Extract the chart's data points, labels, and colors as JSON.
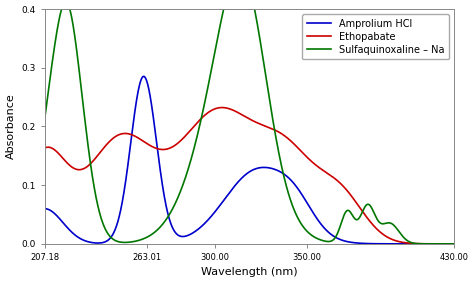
{
  "title": "",
  "xlabel": "Wavelength (nm)",
  "ylabel": "Absorbance",
  "xlim": [
    207,
    430
  ],
  "ylim": [
    0.0,
    0.4
  ],
  "yticks": [
    0.0,
    0.1,
    0.2,
    0.3,
    0.4
  ],
  "xticks": [
    207.18,
    263.01,
    300.0,
    350.0,
    430.0
  ],
  "xtick_labels": [
    "207.18",
    "263.01",
    "300.00",
    "350.00",
    "430.00"
  ],
  "legend": [
    {
      "label": "Amprolium HCl",
      "color": "#0000cc"
    },
    {
      "label": "Ethopabate",
      "color": "#cc0000"
    },
    {
      "label": "Sulfaquinoxaline – Na",
      "color": "#007700"
    }
  ],
  "background": "#ffffff",
  "line_width": 1.2
}
